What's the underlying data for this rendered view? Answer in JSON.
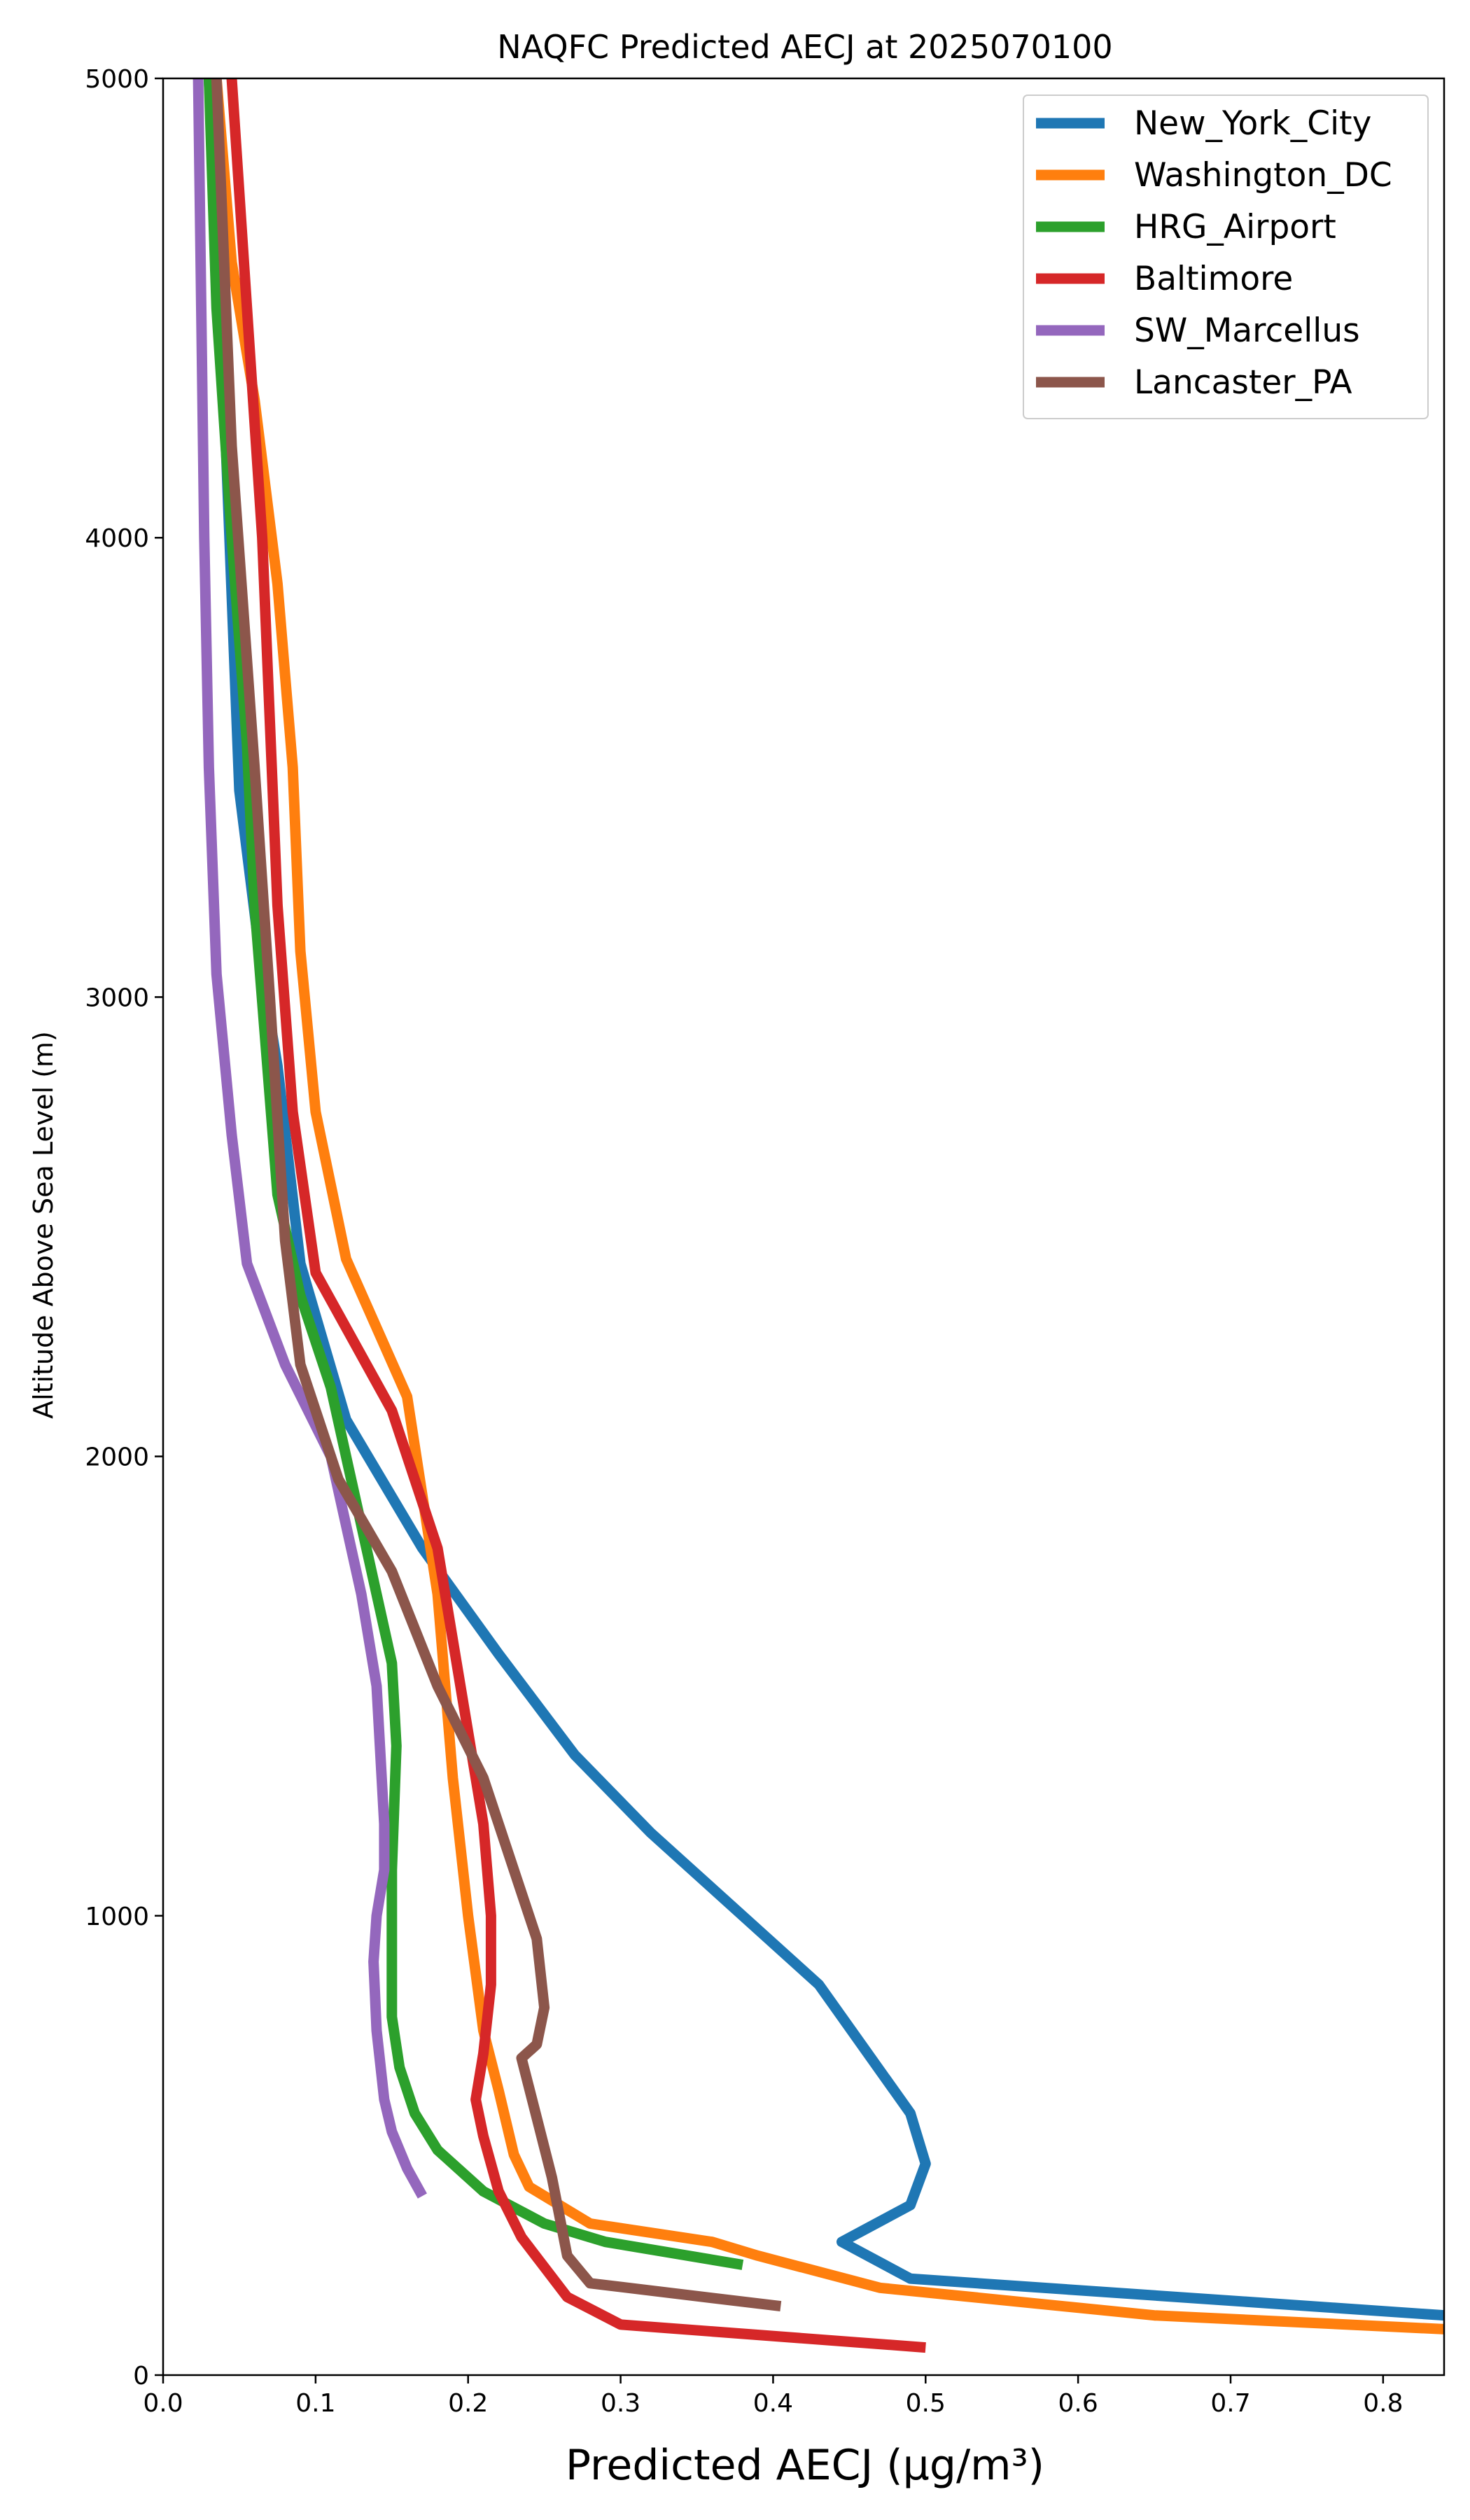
{
  "chart_data": {
    "type": "line",
    "title": "NAQFC Predicted AECJ at 2025070100",
    "xlabel": "Predicted AECJ (μg/m³)",
    "ylabel": "Altitude Above Sea Level (m)",
    "xlim": [
      0,
      0.84
    ],
    "ylim": [
      0,
      5000
    ],
    "x_ticks": [
      "0.0",
      "0.1",
      "0.2",
      "0.3",
      "0.4",
      "0.5",
      "0.6",
      "0.7",
      "0.8"
    ],
    "y_ticks": [
      "0",
      "1000",
      "2000",
      "3000",
      "4000",
      "5000"
    ],
    "x_tick_values": [
      0,
      0.1,
      0.2,
      0.3,
      0.4,
      0.5,
      0.6,
      0.7,
      0.8
    ],
    "y_tick_values": [
      0,
      1000,
      2000,
      3000,
      4000,
      5000
    ],
    "grid": false,
    "legend_position": "top-right",
    "series": [
      {
        "name": "New_York_City",
        "color": "#1f77b4",
        "points": [
          [
            0.84,
            130
          ],
          [
            0.49,
            210
          ],
          [
            0.445,
            290
          ],
          [
            0.49,
            370
          ],
          [
            0.5,
            460
          ],
          [
            0.49,
            570
          ],
          [
            0.43,
            850
          ],
          [
            0.38,
            1000
          ],
          [
            0.32,
            1180
          ],
          [
            0.27,
            1350
          ],
          [
            0.22,
            1570
          ],
          [
            0.17,
            1800
          ],
          [
            0.12,
            2080
          ],
          [
            0.09,
            2420
          ],
          [
            0.075,
            2850
          ],
          [
            0.065,
            3050
          ],
          [
            0.05,
            3450
          ],
          [
            0.04,
            4300
          ],
          [
            0.03,
            5000
          ]
        ]
      },
      {
        "name": "Washington_DC",
        "color": "#ff7f0e",
        "points": [
          [
            0.84,
            100
          ],
          [
            0.65,
            130
          ],
          [
            0.47,
            190
          ],
          [
            0.39,
            260
          ],
          [
            0.36,
            290
          ],
          [
            0.28,
            330
          ],
          [
            0.24,
            410
          ],
          [
            0.23,
            480
          ],
          [
            0.22,
            620
          ],
          [
            0.21,
            750
          ],
          [
            0.2,
            1000
          ],
          [
            0.19,
            1300
          ],
          [
            0.18,
            1700
          ],
          [
            0.16,
            2130
          ],
          [
            0.12,
            2430
          ],
          [
            0.1,
            2750
          ],
          [
            0.09,
            3100
          ],
          [
            0.085,
            3500
          ],
          [
            0.075,
            3900
          ],
          [
            0.06,
            4300
          ],
          [
            0.045,
            4600
          ],
          [
            0.035,
            5000
          ]
        ]
      },
      {
        "name": "HRG_Airport",
        "color": "#2ca02c",
        "points": [
          [
            0.38,
            240
          ],
          [
            0.29,
            290
          ],
          [
            0.25,
            330
          ],
          [
            0.21,
            400
          ],
          [
            0.18,
            490
          ],
          [
            0.165,
            570
          ],
          [
            0.155,
            670
          ],
          [
            0.15,
            780
          ],
          [
            0.15,
            950
          ],
          [
            0.15,
            1100
          ],
          [
            0.153,
            1370
          ],
          [
            0.15,
            1550
          ],
          [
            0.14,
            1700
          ],
          [
            0.13,
            1850
          ],
          [
            0.11,
            2150
          ],
          [
            0.09,
            2350
          ],
          [
            0.075,
            2570
          ],
          [
            0.06,
            3200
          ],
          [
            0.055,
            3550
          ],
          [
            0.045,
            4000
          ],
          [
            0.035,
            4500
          ],
          [
            0.03,
            5000
          ]
        ]
      },
      {
        "name": "Baltimore",
        "color": "#d62728",
        "points": [
          [
            0.5,
            60
          ],
          [
            0.3,
            110
          ],
          [
            0.265,
            170
          ],
          [
            0.235,
            300
          ],
          [
            0.22,
            400
          ],
          [
            0.21,
            520
          ],
          [
            0.205,
            600
          ],
          [
            0.21,
            700
          ],
          [
            0.215,
            850
          ],
          [
            0.215,
            1000
          ],
          [
            0.21,
            1200
          ],
          [
            0.2,
            1400
          ],
          [
            0.18,
            1800
          ],
          [
            0.15,
            2100
          ],
          [
            0.1,
            2400
          ],
          [
            0.085,
            2750
          ],
          [
            0.075,
            3200
          ],
          [
            0.07,
            3600
          ],
          [
            0.065,
            4000
          ],
          [
            0.055,
            4500
          ],
          [
            0.045,
            5000
          ]
        ]
      },
      {
        "name": "SW_Marcellus",
        "color": "#9467bd",
        "points": [
          [
            0.17,
            390
          ],
          [
            0.16,
            450
          ],
          [
            0.15,
            530
          ],
          [
            0.145,
            600
          ],
          [
            0.14,
            750
          ],
          [
            0.138,
            900
          ],
          [
            0.14,
            1000
          ],
          [
            0.145,
            1100
          ],
          [
            0.145,
            1200
          ],
          [
            0.14,
            1500
          ],
          [
            0.13,
            1700
          ],
          [
            0.11,
            2000
          ],
          [
            0.08,
            2200
          ],
          [
            0.055,
            2420
          ],
          [
            0.045,
            2700
          ],
          [
            0.035,
            3050
          ],
          [
            0.03,
            3500
          ],
          [
            0.027,
            4000
          ],
          [
            0.025,
            4500
          ],
          [
            0.023,
            5000
          ]
        ]
      },
      {
        "name": "Lancaster_PA",
        "color": "#8c564b",
        "points": [
          [
            0.405,
            150
          ],
          [
            0.28,
            200
          ],
          [
            0.265,
            260
          ],
          [
            0.255,
            430
          ],
          [
            0.245,
            560
          ],
          [
            0.235,
            690
          ],
          [
            0.245,
            720
          ],
          [
            0.25,
            800
          ],
          [
            0.245,
            950
          ],
          [
            0.23,
            1100
          ],
          [
            0.21,
            1300
          ],
          [
            0.18,
            1500
          ],
          [
            0.15,
            1750
          ],
          [
            0.115,
            1950
          ],
          [
            0.09,
            2200
          ],
          [
            0.08,
            2470
          ],
          [
            0.07,
            3000
          ],
          [
            0.06,
            3500
          ],
          [
            0.045,
            4200
          ],
          [
            0.035,
            5000
          ]
        ]
      }
    ]
  }
}
